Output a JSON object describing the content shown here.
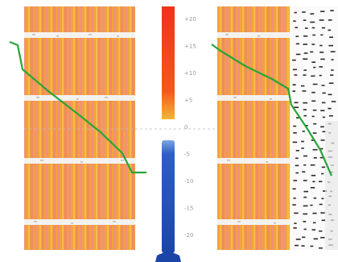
{
  "diagram": {
    "type": "wall temperature gradient (brick wall with insulation)",
    "scale_labels": [
      "+20",
      "+15",
      "+10",
      "+5",
      "0",
      "-5",
      "-10",
      "-15",
      "-20"
    ],
    "colors": {
      "brick_base": "#f2a23c",
      "brick_stripe": "#f08a8c",
      "mortar": "#f4f2ee",
      "profile_line": "#2aa43a",
      "thermo_hot": "#ee3b1c",
      "thermo_cold": "#1e4fb6",
      "insulation_bg": "#fbfbfb",
      "insulation_dash": "#2a2a2a"
    }
  }
}
